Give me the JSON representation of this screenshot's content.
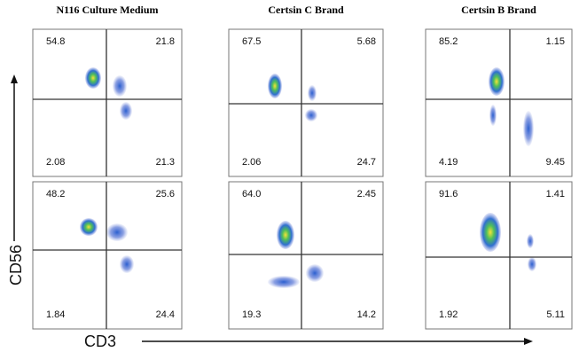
{
  "columns": [
    {
      "title": "N116 Culture Medium"
    },
    {
      "title": "Certsin C Brand"
    },
    {
      "title": "Certsin B Brand"
    }
  ],
  "panels": [
    {
      "upper_left": "54.8",
      "upper_right": "21.8",
      "lower_left": "2.08",
      "lower_right": "21.3"
    },
    {
      "upper_left": "67.5",
      "upper_right": "5.68",
      "lower_left": "2.06",
      "lower_right": "24.7"
    },
    {
      "upper_left": "85.2",
      "upper_right": "1.15",
      "lower_left": "4.19",
      "lower_right": "9.45"
    },
    {
      "upper_left": "48.2",
      "upper_right": "25.6",
      "lower_left": "1.84",
      "lower_right": "24.4"
    },
    {
      "upper_left": "64.0",
      "upper_right": "2.45",
      "lower_left": "19.3",
      "lower_right": "14.2"
    },
    {
      "upper_left": "91.6",
      "upper_right": "1.41",
      "lower_left": "1.92",
      "lower_right": "5.11"
    }
  ],
  "y_axis_label": "CD56",
  "x_axis_label": "CD3"
}
